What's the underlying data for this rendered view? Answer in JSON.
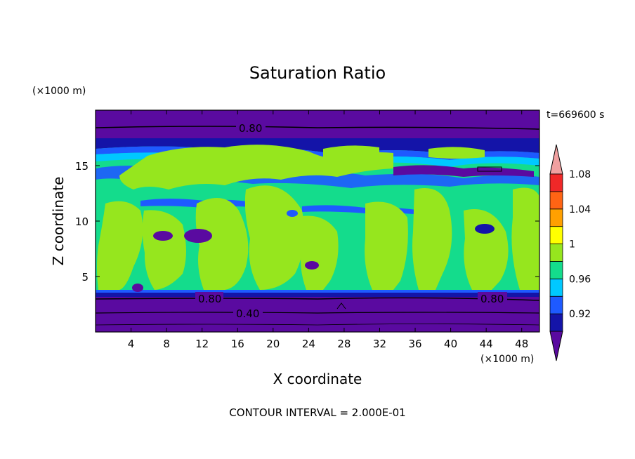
{
  "chart_data": {
    "type": "heatmap",
    "title": "Saturation Ratio",
    "xlabel": "X coordinate",
    "ylabel": "Z coordinate",
    "x_unit": "(×1000 m)",
    "y_unit": "(×1000 m)",
    "time_label": "t=669600 s",
    "footer": "CONTOUR INTERVAL = 2.000E-01",
    "xlim": [
      0,
      50
    ],
    "ylim": [
      0,
      20
    ],
    "xticks": [
      "4",
      "8",
      "12",
      "16",
      "20",
      "24",
      "28",
      "32",
      "36",
      "40",
      "44",
      "48"
    ],
    "yticks": [
      "5",
      "10",
      "15"
    ],
    "contour_labels": [
      "0.80",
      "0.80",
      "0.80",
      "0.40"
    ],
    "colorbar": {
      "levels": [
        0.9,
        0.92,
        0.94,
        0.96,
        0.98,
        1.0,
        1.02,
        1.04,
        1.06,
        1.08,
        1.1
      ],
      "colors": [
        "#5a0aa0",
        "#1414a8",
        "#1e5aff",
        "#00c8ff",
        "#14dc8c",
        "#96e61e",
        "#ffff00",
        "#ffa000",
        "#ff6414",
        "#f02828",
        "#f0a0a0"
      ],
      "labels": [
        "0.92",
        "0.96",
        "1",
        "1.04",
        "1.08"
      ]
    }
  }
}
